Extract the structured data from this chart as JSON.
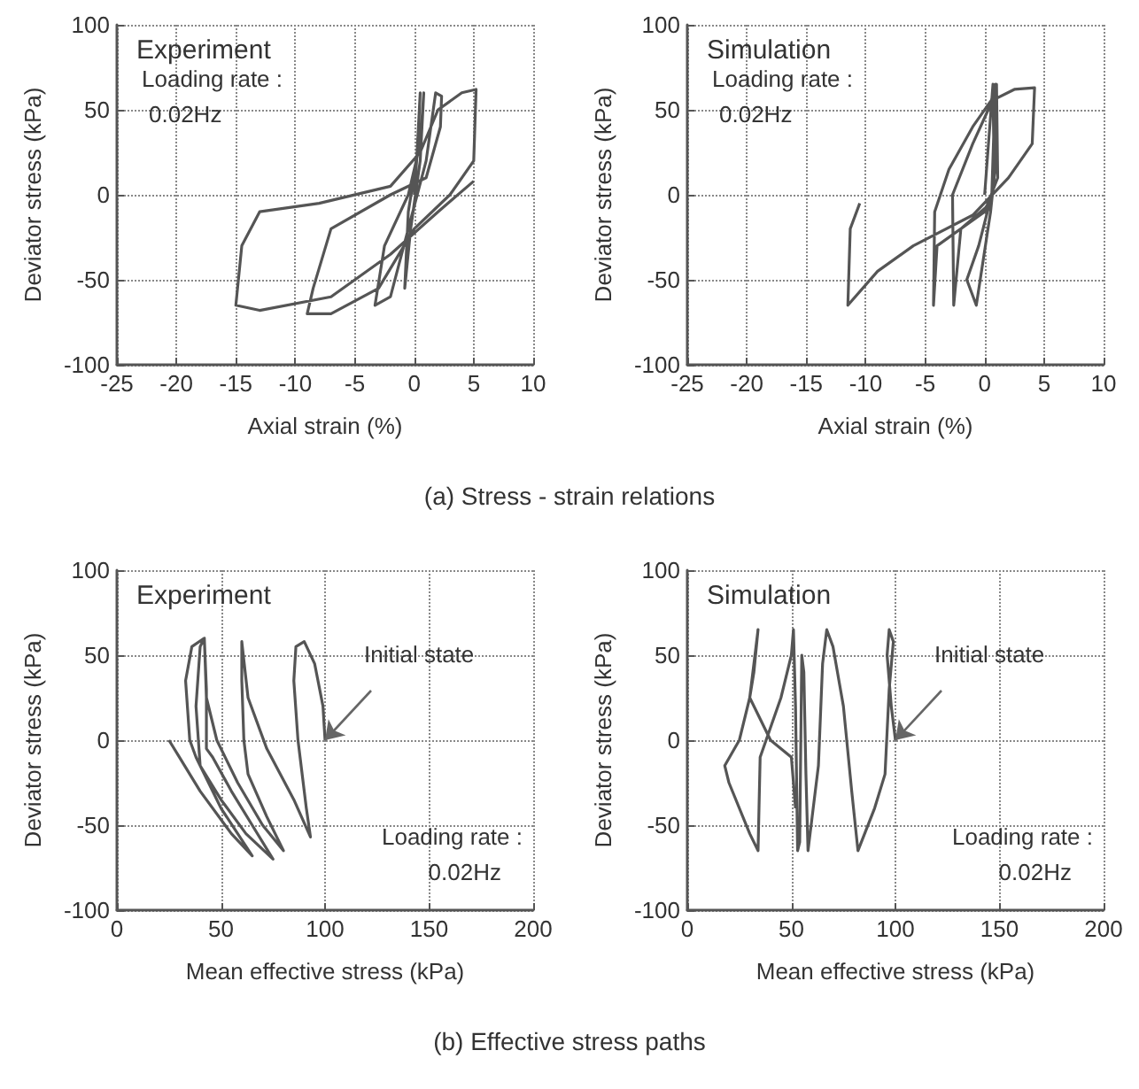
{
  "chart_data": [
    {
      "type": "line",
      "title": "Experiment",
      "xlabel": "Axial strain (%)",
      "ylabel": "Deviator stress (kPa)",
      "xlim": [
        -25,
        10
      ],
      "ylim": [
        -100,
        100
      ],
      "xticks": [
        -25,
        -20,
        -15,
        -10,
        -5,
        0,
        5,
        10
      ],
      "yticks": [
        -100,
        -50,
        0,
        50,
        100
      ],
      "grid": true,
      "annotations": [
        "Loading rate :",
        "0.02Hz",
        "(a) Stress - strain relations"
      ],
      "series": [
        {
          "color": "#555555",
          "x": [
            0,
            0.3,
            0.5,
            0.2,
            -0.5,
            -0.8,
            -0.3,
            0.5,
            0.8,
            0.5,
            -0.5,
            -2.5,
            -3.3,
            -2,
            -0.5,
            1,
            1.8,
            2.3,
            2.2,
            1,
            -2,
            -7,
            -8.5,
            -9,
            -7,
            -3,
            0,
            3,
            5,
            5.2,
            4,
            2,
            0.5,
            -2,
            -8,
            -13,
            -14.5,
            -15,
            -13,
            -7,
            -2,
            2,
            5
          ],
          "values": [
            0,
            30,
            60,
            20,
            -10,
            -55,
            -20,
            20,
            60,
            30,
            0,
            -30,
            -65,
            -60,
            -20,
            20,
            60,
            58,
            40,
            10,
            0,
            -20,
            -55,
            -70,
            -70,
            -55,
            -20,
            0,
            20,
            62,
            60,
            50,
            25,
            5,
            -5,
            -10,
            -30,
            -65,
            -68,
            -60,
            -35,
            -10,
            8
          ]
        }
      ]
    },
    {
      "type": "line",
      "title": "Simulation",
      "xlabel": "Axial strain (%)",
      "ylabel": "Deviator stress (kPa)",
      "xlim": [
        -25,
        10
      ],
      "ylim": [
        -100,
        100
      ],
      "xticks": [
        -25,
        -20,
        -15,
        -10,
        -5,
        0,
        5,
        10
      ],
      "yticks": [
        -100,
        -50,
        0,
        50,
        100
      ],
      "grid": true,
      "annotations": [
        "Loading rate :",
        "0.02Hz"
      ],
      "series": [
        {
          "color": "#555555",
          "x": [
            0,
            0.7,
            0.8,
            0.5,
            -0.7,
            -1.5,
            -0.5,
            0.6,
            0.9,
            1,
            0.5,
            -2,
            -2.6,
            -2.7,
            -1,
            0.3,
            1,
            1.1,
            0,
            -4,
            -4.3,
            -4.2,
            -3,
            -1,
            0.5,
            2.5,
            4.2,
            4,
            2,
            -1,
            -6,
            -9,
            -11.5,
            -11.3,
            -10.5
          ],
          "values": [
            0,
            65,
            10,
            -10,
            -65,
            -50,
            -30,
            0,
            65,
            20,
            -5,
            -20,
            -65,
            0,
            30,
            50,
            65,
            10,
            -10,
            -30,
            -65,
            -10,
            15,
            40,
            55,
            62,
            63,
            30,
            10,
            -12,
            -30,
            -45,
            -65,
            -20,
            -5
          ]
        }
      ]
    },
    {
      "type": "line",
      "title": "Experiment",
      "xlabel": "Mean effective stress (kPa)",
      "ylabel": "Deviator stress (kPa)",
      "xlim": [
        0,
        200
      ],
      "ylim": [
        -100,
        100
      ],
      "xticks": [
        0,
        50,
        100,
        150,
        200
      ],
      "yticks": [
        -100,
        -50,
        0,
        50,
        100
      ],
      "grid": true,
      "annotations": [
        "Loading rate :",
        "0.02Hz",
        {
          "text": "Initial state",
          "x": 100,
          "y": 0
        },
        "(b) Effective stress paths"
      ],
      "series": [
        {
          "color": "#555555",
          "x": [
            100,
            99,
            95,
            90,
            86,
            85,
            87,
            91,
            93,
            85,
            72,
            63,
            60,
            60,
            61,
            63,
            72,
            80,
            70,
            58,
            48,
            43,
            42,
            43,
            43,
            46,
            55,
            65,
            75,
            62,
            50,
            40,
            38,
            40,
            42,
            36,
            33,
            35,
            38,
            50,
            65,
            55,
            40,
            30,
            25
          ],
          "values": [
            0,
            20,
            45,
            58,
            55,
            35,
            0,
            -40,
            -57,
            -35,
            -5,
            25,
            58,
            35,
            0,
            -20,
            -45,
            -65,
            -50,
            -25,
            0,
            25,
            60,
            30,
            -5,
            -10,
            -30,
            -50,
            -70,
            -55,
            -35,
            -15,
            20,
            55,
            60,
            55,
            35,
            0,
            -10,
            -40,
            -68,
            -55,
            -30,
            -10,
            0
          ]
        }
      ]
    },
    {
      "type": "line",
      "title": "Simulation",
      "xlabel": "Mean effective stress (kPa)",
      "ylabel": "Deviator stress (kPa)",
      "xlim": [
        0,
        200
      ],
      "ylim": [
        -100,
        100
      ],
      "xticks": [
        0,
        50,
        100,
        150,
        200
      ],
      "yticks": [
        -100,
        -50,
        0,
        50,
        100
      ],
      "grid": true,
      "annotations": [
        "Loading rate :",
        "0.02Hz",
        {
          "text": "Initial state",
          "x": 100,
          "y": 0
        }
      ],
      "series": [
        {
          "color": "#555555",
          "x": [
            100,
            98,
            96,
            97,
            99,
            97,
            95,
            90,
            82,
            79,
            75,
            70,
            67,
            65,
            63,
            60,
            58,
            57,
            56,
            55,
            54,
            53,
            52,
            51,
            50,
            45,
            35,
            34,
            30,
            20,
            18,
            25,
            30,
            33,
            34,
            32,
            30,
            40,
            50,
            52
          ],
          "values": [
            0,
            20,
            50,
            65,
            58,
            30,
            -20,
            -40,
            -65,
            -30,
            20,
            55,
            65,
            45,
            -15,
            -45,
            -65,
            -20,
            40,
            50,
            -60,
            -65,
            20,
            65,
            50,
            25,
            -10,
            -65,
            -55,
            -25,
            -15,
            0,
            25,
            55,
            65,
            40,
            25,
            0,
            -10,
            -40
          ]
        }
      ]
    }
  ]
}
